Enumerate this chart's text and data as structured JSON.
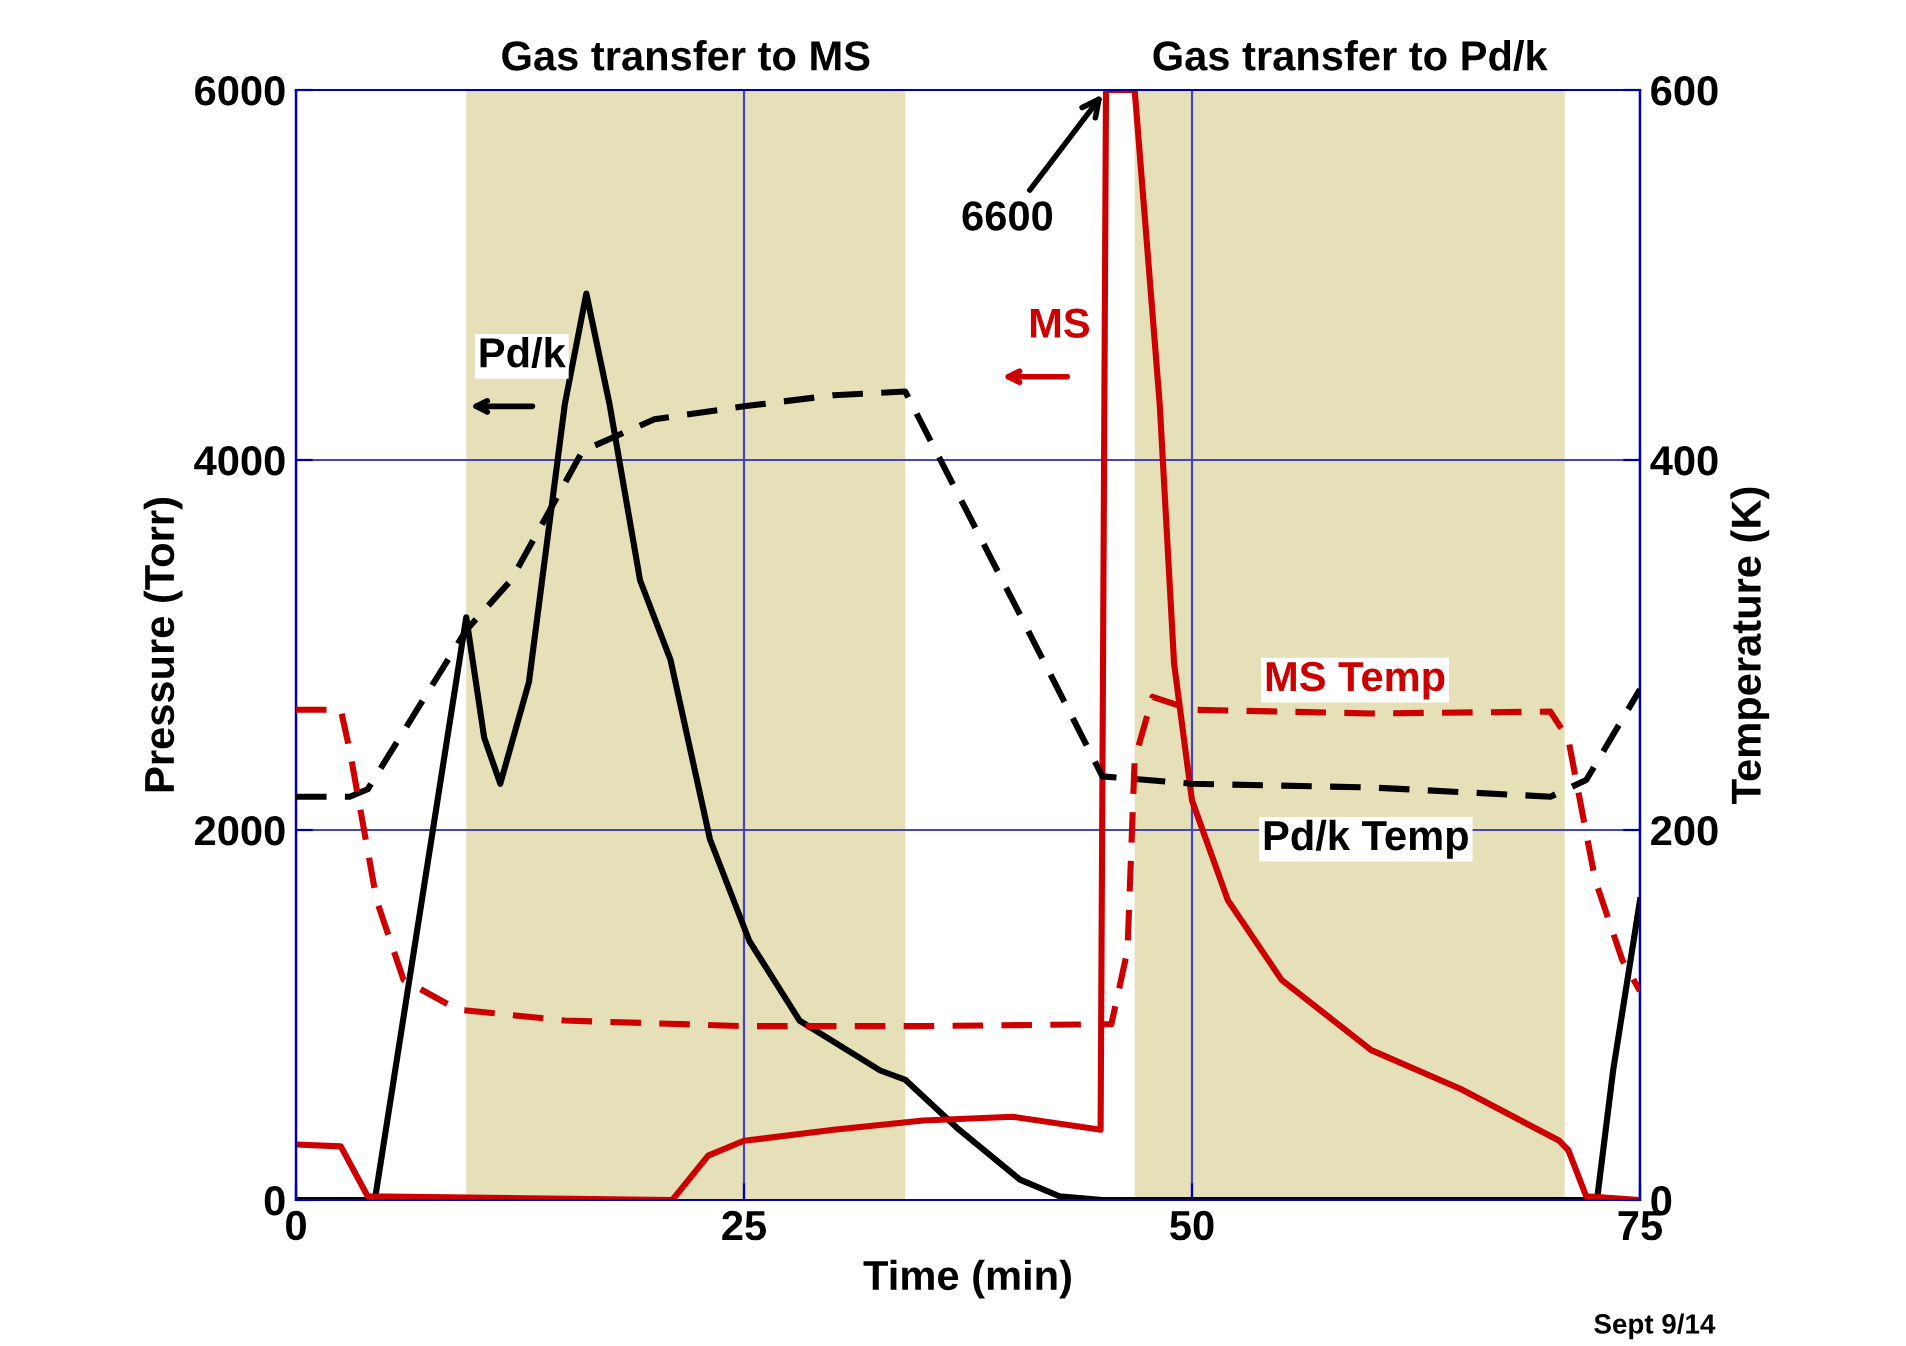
{
  "chart_data": {
    "type": "line",
    "xlabel": "Time (min)",
    "ylabel": "Pressure (Torr)",
    "y2label": "Temperature (K)",
    "xlim": [
      0,
      75
    ],
    "ylim": [
      0,
      6000
    ],
    "y2lim": [
      0,
      600
    ],
    "xticks": [
      0,
      25,
      50,
      75
    ],
    "yticks": [
      0,
      2000,
      4000,
      6000
    ],
    "y2ticks": [
      0,
      200,
      400,
      600
    ],
    "grid": true,
    "legend": false,
    "series": [
      {
        "name": "Pd/k",
        "color": "#000000",
        "line_style": "solid",
        "x": [
          0,
          4.4,
          9.5,
          10.5,
          11.4,
          13,
          15,
          16.2,
          17.5,
          19.2,
          20.9,
          23.1,
          25.3,
          28.1,
          32.6,
          34,
          37,
          40.4,
          42.6,
          45,
          72.6,
          73.5,
          75
        ],
        "values": [
          0,
          0,
          3150,
          2500,
          2250,
          2800,
          4300,
          4900,
          4300,
          3350,
          2920,
          1950,
          1400,
          970,
          700,
          650,
          380,
          110,
          20,
          0,
          0,
          700,
          1620
        ]
      },
      {
        "name": "MS",
        "color": "#cc0000",
        "line_style": "solid",
        "x": [
          0,
          2.5,
          4,
          21,
          23,
          25,
          30,
          35,
          40,
          44.9,
          45.2,
          46.8,
          48.2,
          49,
          50,
          52,
          55,
          60,
          65,
          70.5,
          71,
          72,
          75
        ],
        "values": [
          300,
          290,
          20,
          0,
          240,
          320,
          380,
          430,
          450,
          380,
          6000,
          6000,
          4300,
          2900,
          2160,
          1620,
          1190,
          810,
          600,
          320,
          270,
          20,
          0
        ]
      },
      {
        "name": "Pd/k Temp",
        "color": "#000000",
        "line_style": "dashed",
        "axis": "y2",
        "x": [
          0,
          3,
          4,
          9.5,
          12,
          16,
          20,
          25,
          30,
          34,
          40,
          45,
          50,
          60,
          70,
          72,
          75
        ],
        "values": [
          218,
          218,
          222,
          308,
          335,
          405,
          422,
          429,
          435,
          437,
          324,
          229,
          225,
          223,
          218,
          227,
          276
        ]
      },
      {
        "name": "MS Temp",
        "color": "#cc0000",
        "line_style": "dashed",
        "axis": "y2",
        "x": [
          0,
          2.5,
          3,
          4.5,
          6,
          9,
          15,
          25,
          35,
          45,
          45.5,
          46.4,
          46.8,
          47.8,
          50,
          60,
          70,
          71,
          72.5,
          74,
          75
        ],
        "values": [
          265,
          265,
          243,
          162,
          119,
          103,
          97,
          94,
          94,
          95,
          95,
          135,
          238,
          272,
          265,
          263,
          264,
          249,
          173,
          130,
          113
        ]
      }
    ],
    "bands": [
      {
        "axis": "x",
        "from": 9.5,
        "to": 34,
        "label": "Gas transfer to MS",
        "color": "#e6e0b8"
      },
      {
        "axis": "x",
        "from": 46.8,
        "to": 70.8,
        "label": "Gas transfer to Pd/k",
        "color": "#e6e0b8"
      }
    ],
    "annotations": [
      {
        "text": "6600",
        "x": 45.2,
        "y": 6000
      },
      "Sept 9/14"
    ]
  }
}
